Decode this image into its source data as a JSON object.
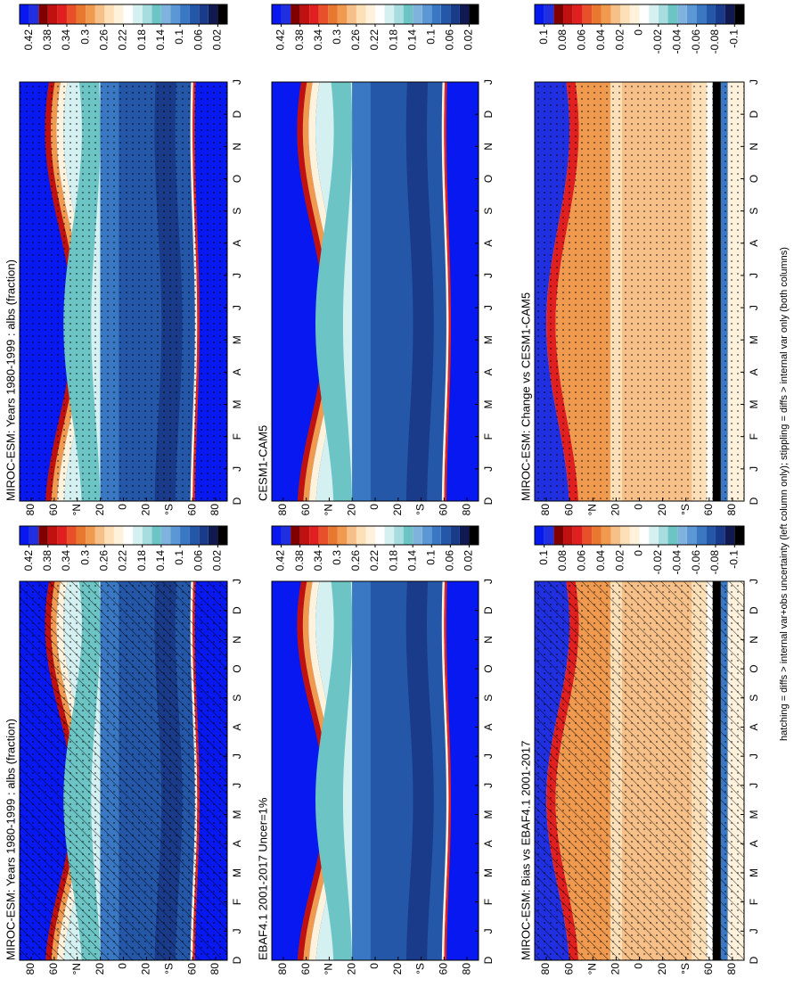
{
  "footnote": "hatching = diffs > internal var+obs uncertainty (left column only); stippling = diffs > internal var only (both columns)",
  "chart_data": [
    {
      "type": "contour",
      "title": "MIROC-ESM: Years 1980-1999 : albs (fraction)",
      "style": "climatology",
      "hatching": true,
      "stippling": true,
      "categories": [
        "D",
        "J",
        "F",
        "M",
        "A",
        "M",
        "J",
        "J",
        "A",
        "S",
        "O",
        "N",
        "D",
        "J"
      ],
      "ylim": [
        -90,
        90
      ],
      "yticks": [
        80,
        60,
        {
          "value": 40,
          "label": "°N"
        },
        20,
        0,
        {
          "value": -20,
          "label": "20"
        },
        {
          "value": -40,
          "label": "°S"
        },
        {
          "value": -60,
          "label": "60"
        },
        {
          "value": -80,
          "label": "80"
        }
      ],
      "colorbar": {
        "lim": [
          0,
          0.44
        ],
        "ticks": [
          0.42,
          0.38,
          0.34,
          0.3,
          0.26,
          0.22,
          0.18,
          0.14,
          0.1,
          0.06,
          0.02
        ],
        "colors": [
          "#000000",
          "#101a50",
          "#1a3a8a",
          "#2457a8",
          "#3a78c4",
          "#5b97d4",
          "#7fb2dc",
          "#6cc4c4",
          "#a8dde0",
          "#d4f0f0",
          "#ffffff",
          "#fff2dc",
          "#fde0b8",
          "#f7c088",
          "#f09a50",
          "#e87830",
          "#e8502a",
          "#e02020",
          "#c01010",
          "#800000",
          "#2030e0",
          "#0818f0"
        ]
      }
    },
    {
      "type": "contour",
      "title": "MIROC-ESM: Years 1980-1999 : albs (fraction)",
      "style": "climatology",
      "hatching": false,
      "stippling": true,
      "categories": [
        "D",
        "J",
        "F",
        "M",
        "A",
        "M",
        "J",
        "J",
        "A",
        "S",
        "O",
        "N",
        "D",
        "J"
      ],
      "ylim": [
        -90,
        90
      ],
      "yticks": [
        80,
        60,
        {
          "value": 40,
          "label": "°N"
        },
        20,
        0,
        {
          "value": -20,
          "label": "20"
        },
        {
          "value": -40,
          "label": "°S"
        },
        {
          "value": -60,
          "label": "60"
        },
        {
          "value": -80,
          "label": "80"
        }
      ],
      "colorbar": {
        "lim": [
          0,
          0.44
        ],
        "ticks": [
          0.42,
          0.38,
          0.34,
          0.3,
          0.26,
          0.22,
          0.18,
          0.14,
          0.1,
          0.06,
          0.02
        ],
        "colors": [
          "#000000",
          "#101a50",
          "#1a3a8a",
          "#2457a8",
          "#3a78c4",
          "#5b97d4",
          "#7fb2dc",
          "#6cc4c4",
          "#a8dde0",
          "#d4f0f0",
          "#ffffff",
          "#fff2dc",
          "#fde0b8",
          "#f7c088",
          "#f09a50",
          "#e87830",
          "#e8502a",
          "#e02020",
          "#c01010",
          "#800000",
          "#2030e0",
          "#0818f0"
        ]
      }
    },
    {
      "type": "contour",
      "title": "EBAF4.1 2001-2017 Uncer=1%",
      "style": "climatology",
      "hatching": false,
      "stippling": false,
      "categories": [
        "D",
        "J",
        "F",
        "M",
        "A",
        "M",
        "J",
        "J",
        "A",
        "S",
        "O",
        "N",
        "D",
        "J"
      ],
      "ylim": [
        -90,
        90
      ],
      "yticks": [
        80,
        60,
        {
          "value": 40,
          "label": "°N"
        },
        20,
        0,
        {
          "value": -20,
          "label": "20"
        },
        {
          "value": -40,
          "label": "°S"
        },
        {
          "value": -60,
          "label": "60"
        },
        {
          "value": -80,
          "label": "80"
        }
      ],
      "colorbar": {
        "lim": [
          0,
          0.44
        ],
        "ticks": [
          0.42,
          0.38,
          0.34,
          0.3,
          0.26,
          0.22,
          0.18,
          0.14,
          0.1,
          0.06,
          0.02
        ],
        "colors": [
          "#000000",
          "#101a50",
          "#1a3a8a",
          "#2457a8",
          "#3a78c4",
          "#5b97d4",
          "#7fb2dc",
          "#6cc4c4",
          "#a8dde0",
          "#d4f0f0",
          "#ffffff",
          "#fff2dc",
          "#fde0b8",
          "#f7c088",
          "#f09a50",
          "#e87830",
          "#e8502a",
          "#e02020",
          "#c01010",
          "#800000",
          "#2030e0",
          "#0818f0"
        ]
      }
    },
    {
      "type": "contour",
      "title": "CESM1-CAM5",
      "style": "climatology",
      "hatching": false,
      "stippling": false,
      "categories": [
        "D",
        "J",
        "F",
        "M",
        "A",
        "M",
        "J",
        "J",
        "A",
        "S",
        "O",
        "N",
        "D",
        "J"
      ],
      "ylim": [
        -90,
        90
      ],
      "yticks": [
        80,
        60,
        {
          "value": 40,
          "label": "°N"
        },
        20,
        0,
        {
          "value": -20,
          "label": "20"
        },
        {
          "value": -40,
          "label": "°S"
        },
        {
          "value": -60,
          "label": "60"
        },
        {
          "value": -80,
          "label": "80"
        }
      ],
      "colorbar": {
        "lim": [
          0,
          0.44
        ],
        "ticks": [
          0.42,
          0.38,
          0.34,
          0.3,
          0.26,
          0.22,
          0.18,
          0.14,
          0.1,
          0.06,
          0.02
        ],
        "colors": [
          "#000000",
          "#101a50",
          "#1a3a8a",
          "#2457a8",
          "#3a78c4",
          "#5b97d4",
          "#7fb2dc",
          "#6cc4c4",
          "#a8dde0",
          "#d4f0f0",
          "#ffffff",
          "#fff2dc",
          "#fde0b8",
          "#f7c088",
          "#f09a50",
          "#e87830",
          "#e8502a",
          "#e02020",
          "#c01010",
          "#800000",
          "#2030e0",
          "#0818f0"
        ]
      }
    },
    {
      "type": "contour",
      "title": "MIROC-ESM: Bias vs EBAF4.1 2001-2017",
      "style": "difference",
      "hatching": true,
      "stippling": true,
      "categories": [
        "D",
        "J",
        "F",
        "M",
        "A",
        "M",
        "J",
        "J",
        "A",
        "S",
        "O",
        "N",
        "D",
        "J"
      ],
      "ylim": [
        -90,
        90
      ],
      "yticks": [
        80,
        60,
        {
          "value": 40,
          "label": "°N"
        },
        20,
        0,
        {
          "value": -20,
          "label": "20"
        },
        {
          "value": -40,
          "label": "°S"
        },
        {
          "value": -60,
          "label": "60"
        },
        {
          "value": -80,
          "label": "80"
        }
      ],
      "colorbar": {
        "lim": [
          -0.11,
          0.11
        ],
        "ticks": [
          0.1,
          0.08,
          0.06,
          0.04,
          0.02,
          0,
          -0.02,
          -0.04,
          -0.06,
          -0.08,
          -0.1
        ],
        "colors": [
          "#000000",
          "#101a50",
          "#1a3a8a",
          "#2457a8",
          "#3a78c4",
          "#5b97d4",
          "#7fb2dc",
          "#6cc4c4",
          "#a8dde0",
          "#d4f0f0",
          "#ffffff",
          "#fff2dc",
          "#fde0b8",
          "#f7c088",
          "#f09a50",
          "#e87830",
          "#e8502a",
          "#e02020",
          "#c01010",
          "#800000",
          "#2030e0",
          "#0818f0"
        ]
      }
    },
    {
      "type": "contour",
      "title": "MIROC-ESM: Change vs CESM1-CAM5",
      "style": "difference",
      "hatching": false,
      "stippling": true,
      "categories": [
        "D",
        "J",
        "F",
        "M",
        "A",
        "M",
        "J",
        "J",
        "A",
        "S",
        "O",
        "N",
        "D",
        "J"
      ],
      "ylim": [
        -90,
        90
      ],
      "yticks": [
        80,
        60,
        {
          "value": 40,
          "label": "°N"
        },
        20,
        0,
        {
          "value": -20,
          "label": "20"
        },
        {
          "value": -40,
          "label": "°S"
        },
        {
          "value": -60,
          "label": "60"
        },
        {
          "value": -80,
          "label": "80"
        }
      ],
      "colorbar": {
        "lim": [
          -0.11,
          0.11
        ],
        "ticks": [
          0.1,
          0.08,
          0.06,
          0.04,
          0.02,
          0,
          -0.02,
          -0.04,
          -0.06,
          -0.08,
          -0.1
        ],
        "colors": [
          "#000000",
          "#101a50",
          "#1a3a8a",
          "#2457a8",
          "#3a78c4",
          "#5b97d4",
          "#7fb2dc",
          "#6cc4c4",
          "#a8dde0",
          "#d4f0f0",
          "#ffffff",
          "#fff2dc",
          "#fde0b8",
          "#f7c088",
          "#f09a50",
          "#e87830",
          "#e8502a",
          "#e02020",
          "#c01010",
          "#800000",
          "#2030e0",
          "#0818f0"
        ]
      }
    }
  ]
}
